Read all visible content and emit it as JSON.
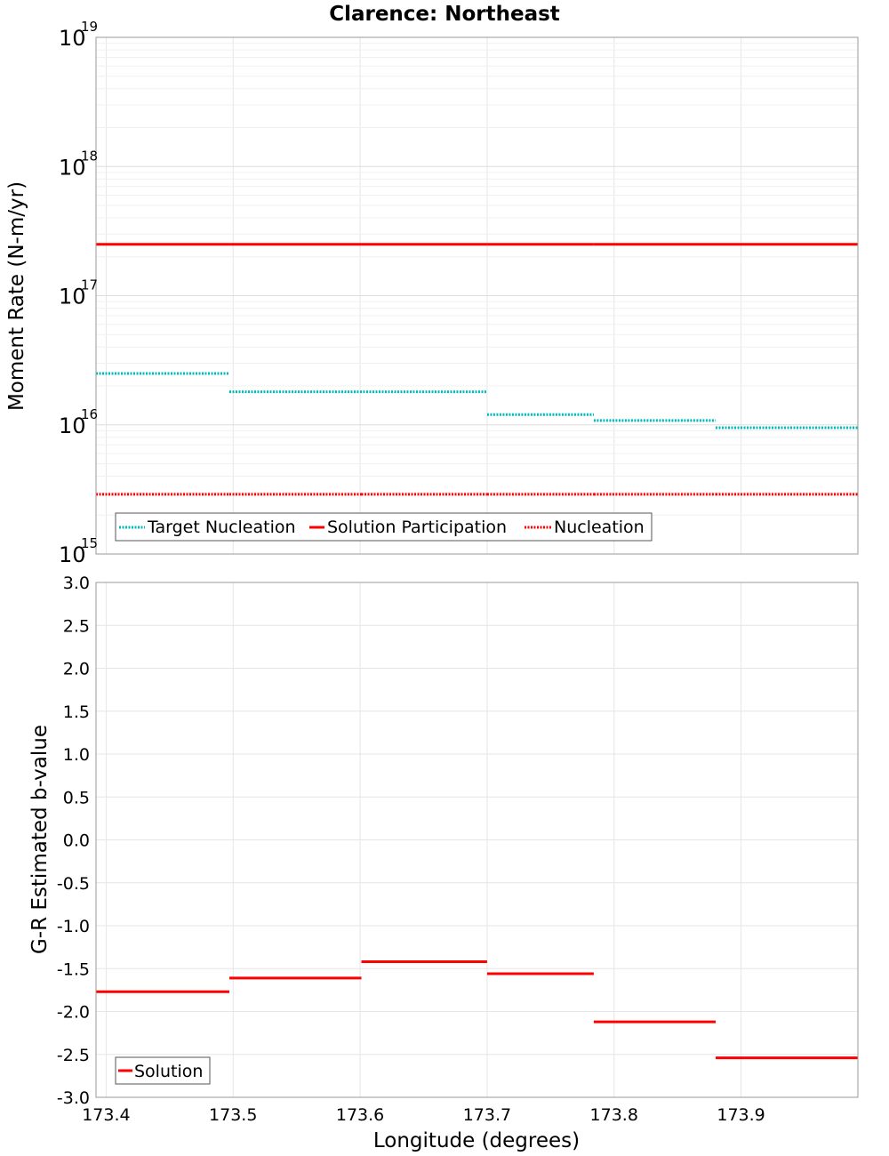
{
  "chart_data": [
    {
      "id": "moment-rate",
      "type": "line",
      "title": "Clarence: Northeast",
      "xlabel": "",
      "ylabel": "Moment Rate (N-m/yr)",
      "yscale": "log",
      "xlim": [
        173.392,
        173.992
      ],
      "ylim": [
        1000000000000000.0,
        1e+19
      ],
      "grid": true,
      "legend_position": "bottom-left",
      "y_ticks": [
        {
          "base": "10",
          "exp": "15",
          "value": 1000000000000000.0
        },
        {
          "base": "10",
          "exp": "16",
          "value": 1e+16
        },
        {
          "base": "10",
          "exp": "17",
          "value": 1e+17
        },
        {
          "base": "10",
          "exp": "18",
          "value": 1e+18
        },
        {
          "base": "10",
          "exp": "19",
          "value": 1e+19
        }
      ],
      "series": [
        {
          "name": "Target Nucleation",
          "color": "#00bbbb",
          "style": "dotted",
          "segments": [
            {
              "x0": 173.392,
              "x1": 173.497,
              "y": 2.5e+16
            },
            {
              "x0": 173.497,
              "x1": 173.7,
              "y": 1.8e+16
            },
            {
              "x0": 173.7,
              "x1": 173.784,
              "y": 1.2e+16
            },
            {
              "x0": 173.784,
              "x1": 173.88,
              "y": 1.08e+16
            },
            {
              "x0": 173.88,
              "x1": 173.992,
              "y": 9500000000000000.0
            }
          ]
        },
        {
          "name": "Solution Participation",
          "color": "#ff0000",
          "style": "solid",
          "segments": [
            {
              "x0": 173.392,
              "x1": 173.497,
              "y": 2.5e+17
            },
            {
              "x0": 173.497,
              "x1": 173.601,
              "y": 2.5e+17
            },
            {
              "x0": 173.601,
              "x1": 173.7,
              "y": 2.5e+17
            },
            {
              "x0": 173.7,
              "x1": 173.784,
              "y": 2.5e+17
            },
            {
              "x0": 173.784,
              "x1": 173.88,
              "y": 2.5e+17
            },
            {
              "x0": 173.88,
              "x1": 173.992,
              "y": 2.5e+17
            }
          ]
        },
        {
          "name": "Nucleation",
          "color": "#ff0000",
          "style": "dotted",
          "segments": [
            {
              "x0": 173.392,
              "x1": 173.497,
              "y": 2900000000000000.0
            },
            {
              "x0": 173.497,
              "x1": 173.601,
              "y": 2900000000000000.0
            },
            {
              "x0": 173.601,
              "x1": 173.7,
              "y": 2900000000000000.0
            },
            {
              "x0": 173.7,
              "x1": 173.784,
              "y": 2900000000000000.0
            },
            {
              "x0": 173.784,
              "x1": 173.88,
              "y": 2900000000000000.0
            },
            {
              "x0": 173.88,
              "x1": 173.992,
              "y": 2900000000000000.0
            }
          ]
        }
      ]
    },
    {
      "id": "b-value",
      "type": "line",
      "title": "",
      "xlabel": "Longitude (degrees)",
      "ylabel": "G-R Estimated b-value",
      "xlim": [
        173.392,
        173.992
      ],
      "ylim": [
        -3.0,
        3.0
      ],
      "grid": true,
      "legend_position": "bottom-left",
      "x_ticks": [
        "173.4",
        "173.5",
        "173.6",
        "173.7",
        "173.8",
        "173.9"
      ],
      "y_ticks": [
        "3.0",
        "2.5",
        "2.0",
        "1.5",
        "1.0",
        "0.5",
        "0.0",
        "-0.5",
        "-1.0",
        "-1.5",
        "-2.0",
        "-2.5",
        "-3.0"
      ],
      "series": [
        {
          "name": "Solution",
          "color": "#ff0000",
          "style": "solid",
          "segments": [
            {
              "x0": 173.392,
              "x1": 173.497,
              "y": -1.77
            },
            {
              "x0": 173.497,
              "x1": 173.601,
              "y": -1.61
            },
            {
              "x0": 173.601,
              "x1": 173.7,
              "y": -1.42
            },
            {
              "x0": 173.7,
              "x1": 173.784,
              "y": -1.56
            },
            {
              "x0": 173.784,
              "x1": 173.88,
              "y": -2.12
            },
            {
              "x0": 173.88,
              "x1": 173.992,
              "y": -2.54
            }
          ]
        }
      ]
    }
  ]
}
